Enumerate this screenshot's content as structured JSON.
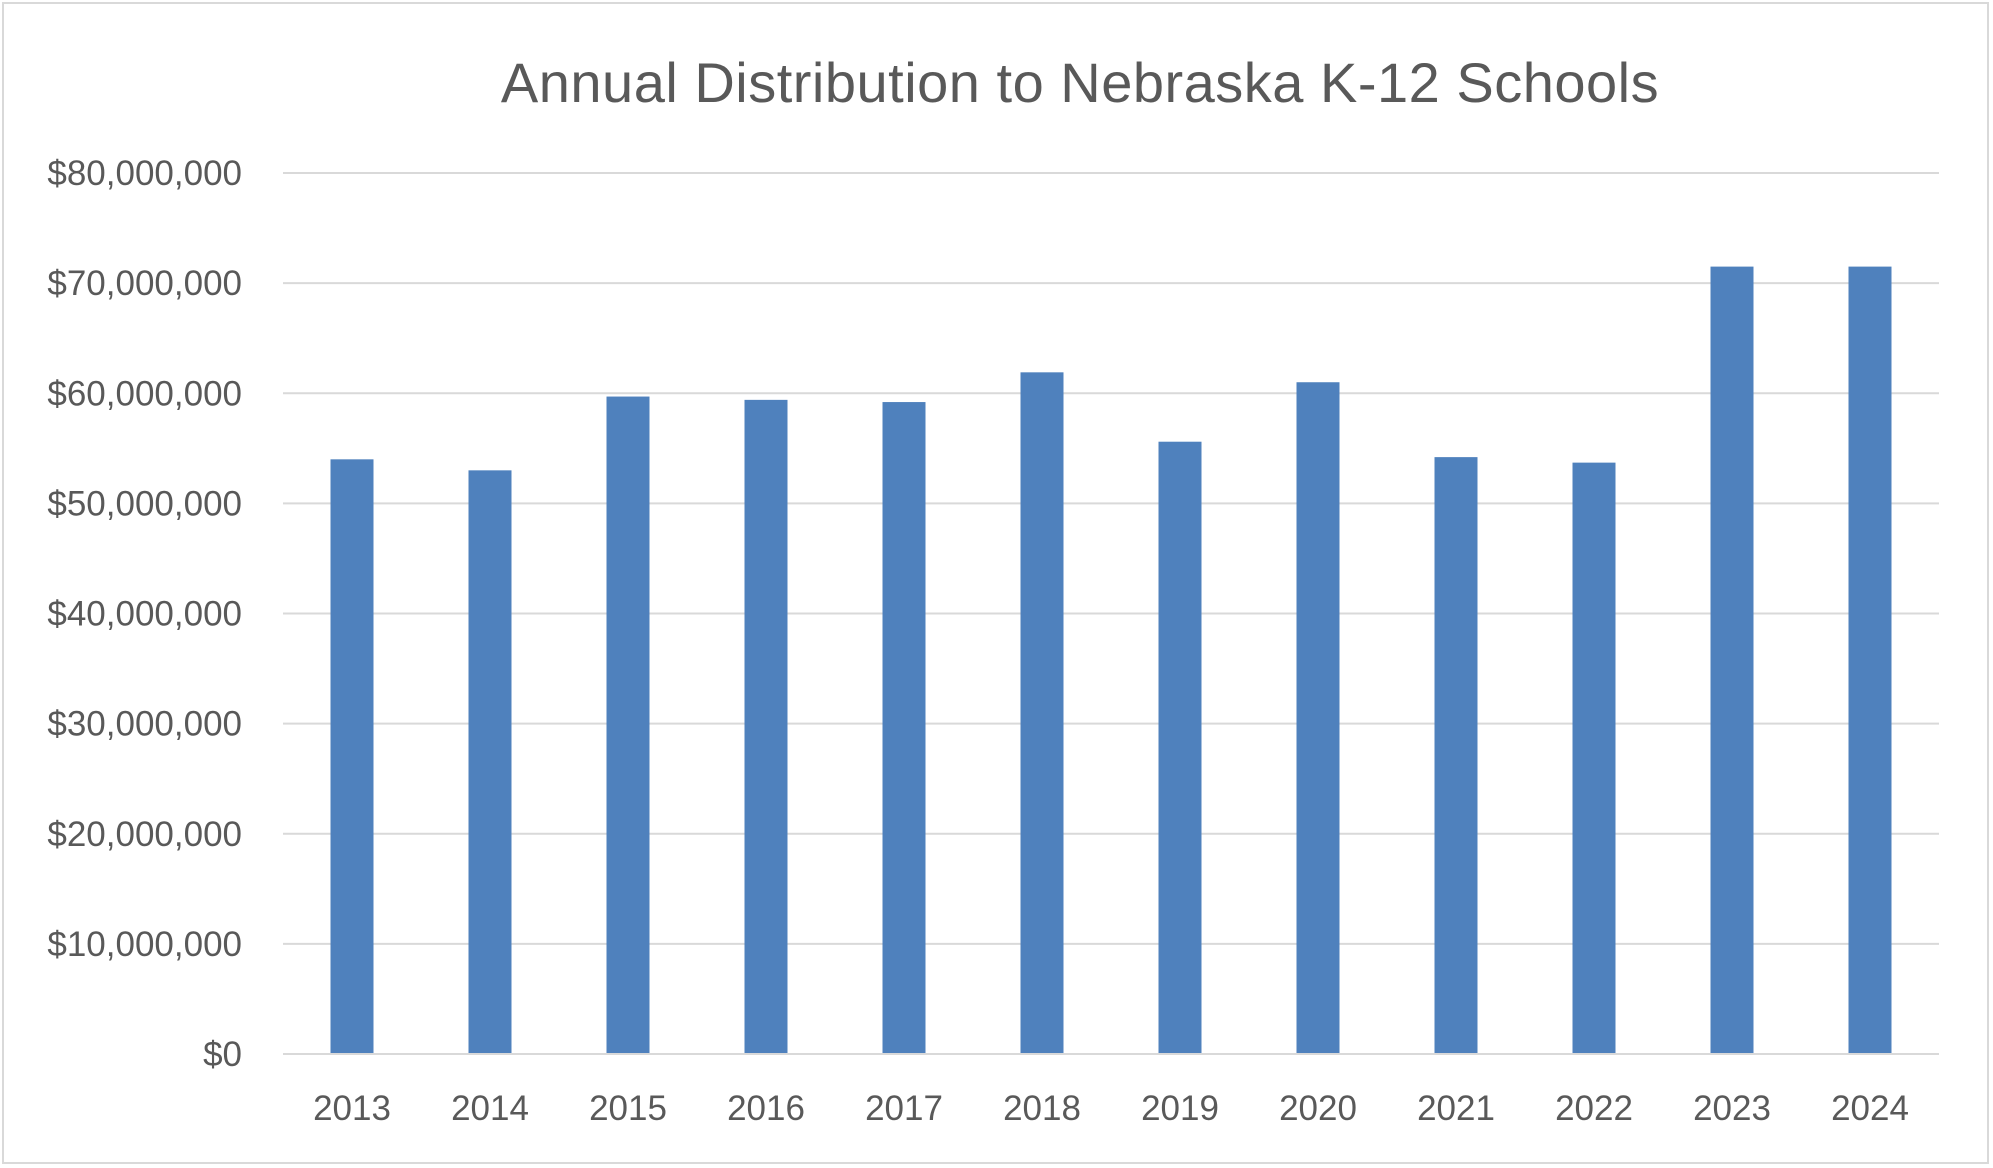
{
  "chart_data": {
    "type": "bar",
    "title": "Annual Distribution to Nebraska K-12 Schools",
    "xlabel": "",
    "ylabel": "",
    "categories": [
      "2013",
      "2014",
      "2015",
      "2016",
      "2017",
      "2018",
      "2019",
      "2020",
      "2021",
      "2022",
      "2023",
      "2024"
    ],
    "values": [
      54000000,
      53000000,
      59700000,
      59400000,
      59200000,
      61900000,
      55600000,
      61000000,
      54200000,
      53700000,
      71500000,
      71500000
    ],
    "ylim": [
      0,
      80000000
    ],
    "yticks": [
      {
        "value": 0,
        "label": "$0"
      },
      {
        "value": 10000000,
        "label": "$10,000,000"
      },
      {
        "value": 20000000,
        "label": "$20,000,000"
      },
      {
        "value": 30000000,
        "label": "$30,000,000"
      },
      {
        "value": 40000000,
        "label": "$40,000,000"
      },
      {
        "value": 50000000,
        "label": "$50,000,000"
      },
      {
        "value": 60000000,
        "label": "$60,000,000"
      },
      {
        "value": 70000000,
        "label": "$70,000,000"
      },
      {
        "value": 80000000,
        "label": "$80,000,000"
      }
    ],
    "grid": true,
    "legend": "none",
    "colors": {
      "bar": "#4f81bd",
      "grid": "#d9d9d9",
      "text": "#595959",
      "border": "#d9d9d9"
    }
  }
}
